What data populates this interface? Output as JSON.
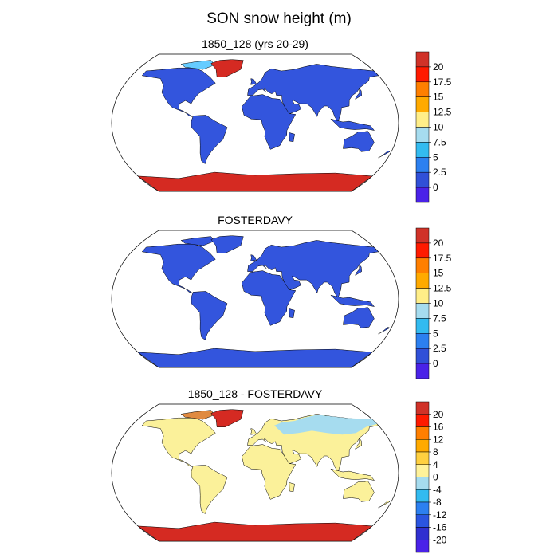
{
  "figure": {
    "title": "SON snow height (m)"
  },
  "panels": [
    {
      "title": "1850_128 (yrs 20-29)",
      "colorbar": {
        "labels": [
          "20",
          "17.5",
          "15",
          "12.5",
          "10",
          "7.5",
          "5",
          "2.5",
          "0"
        ],
        "colors": [
          "#d03228",
          "#ff1a00",
          "#ff7f00",
          "#ffaa00",
          "#ffee88",
          "#a6dcef",
          "#33bbf0",
          "#2c80f0",
          "#3050d8",
          "#4a22e8"
        ]
      },
      "fields": {
        "land": "#3355dd",
        "antarctica": "#d52a22",
        "greenland": "#d52a22",
        "arctic_islands": "#66ccff"
      }
    },
    {
      "title": "FOSTERDAVY",
      "colorbar": {
        "labels": [
          "20",
          "17.5",
          "15",
          "12.5",
          "10",
          "7.5",
          "5",
          "2.5",
          "0"
        ],
        "colors": [
          "#d03228",
          "#ff1a00",
          "#ff7f00",
          "#ffaa00",
          "#ffee88",
          "#a6dcef",
          "#33bbf0",
          "#2c80f0",
          "#3050d8",
          "#4a22e8"
        ]
      },
      "fields": {
        "land": "#3355dd",
        "antarctica": "#3355dd",
        "greenland": "#3355dd",
        "arctic_islands": "#3355dd"
      }
    },
    {
      "title": "1850_128 - FOSTERDAVY",
      "colorbar": {
        "labels": [
          "20",
          "16",
          "12",
          "8",
          "4",
          "0",
          "-4",
          "-8",
          "-12",
          "-16",
          "-20"
        ],
        "colors": [
          "#d03228",
          "#ff1a00",
          "#ff7f00",
          "#ffaa00",
          "#ffd040",
          "#fff29a",
          "#a6dcef",
          "#33bbf0",
          "#2c80f0",
          "#2a55e0",
          "#3030d0",
          "#4a22e8"
        ]
      },
      "fields": {
        "land": "#fbf19a",
        "antarctica": "#d52a22",
        "greenland": "#d52a22",
        "arctic_islands": "#e08a40",
        "siberia": "#a6dcef"
      }
    }
  ]
}
